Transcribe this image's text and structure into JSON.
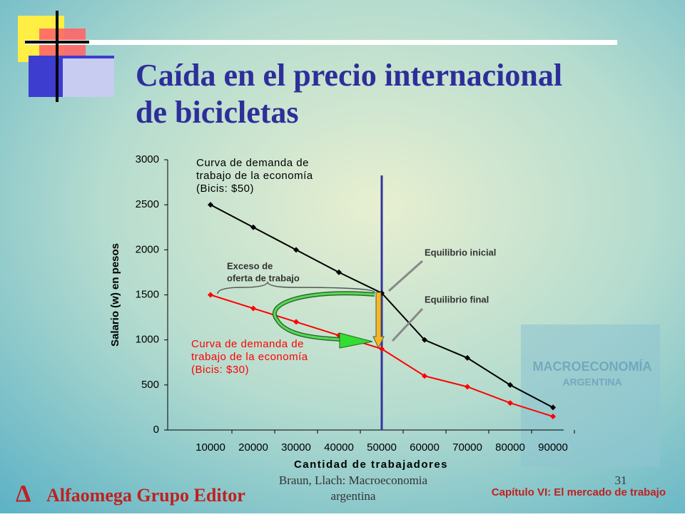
{
  "slide_title": [
    "Caída en el precio internacional",
    "de bicicletas"
  ],
  "footer": {
    "author": [
      "Braun, Llach: Macroeconomia",
      "argentina"
    ],
    "page": "31",
    "chapter": "Capítulo VI: El mercado de trabajo",
    "publisher": "Alfaomega Grupo Editor"
  },
  "cover": {
    "title": "MACROECONOMÍA",
    "subtitle": "ARGENTINA"
  },
  "chart_data": {
    "type": "line",
    "x_label": "Cantidad de trabajadores",
    "y_label": "Salario (w) en pesos",
    "x": [
      10000,
      20000,
      30000,
      40000,
      50000,
      60000,
      70000,
      80000,
      90000
    ],
    "xlim": [
      0,
      90000
    ],
    "xticks": [
      10000,
      20000,
      30000,
      40000,
      50000,
      60000,
      70000,
      80000,
      90000
    ],
    "ylim": [
      0,
      3000
    ],
    "yticks": [
      0,
      500,
      1000,
      1500,
      2000,
      2500,
      3000
    ],
    "vline": 50000,
    "vline_color": "#3333a0",
    "series": [
      {
        "name": [
          "Curva de demanda de",
          "trabajo de la economía",
          "(Bicis: $50)"
        ],
        "color": "#000000",
        "values": [
          2500,
          2250,
          2000,
          1750,
          1520,
          1000,
          800,
          500,
          250
        ]
      },
      {
        "name": [
          "Curva de demanda de",
          "trabajo de la economía",
          "(Bicis: $30)"
        ],
        "color": "#ff0000",
        "values": [
          1500,
          1350,
          1200,
          1050,
          900,
          600,
          480,
          300,
          150
        ]
      }
    ],
    "annotations": {
      "initial": "Equilibrio inicial",
      "final": "Equilibrio final",
      "excess": [
        "Exceso de",
        "oferta de trabajo"
      ]
    }
  }
}
